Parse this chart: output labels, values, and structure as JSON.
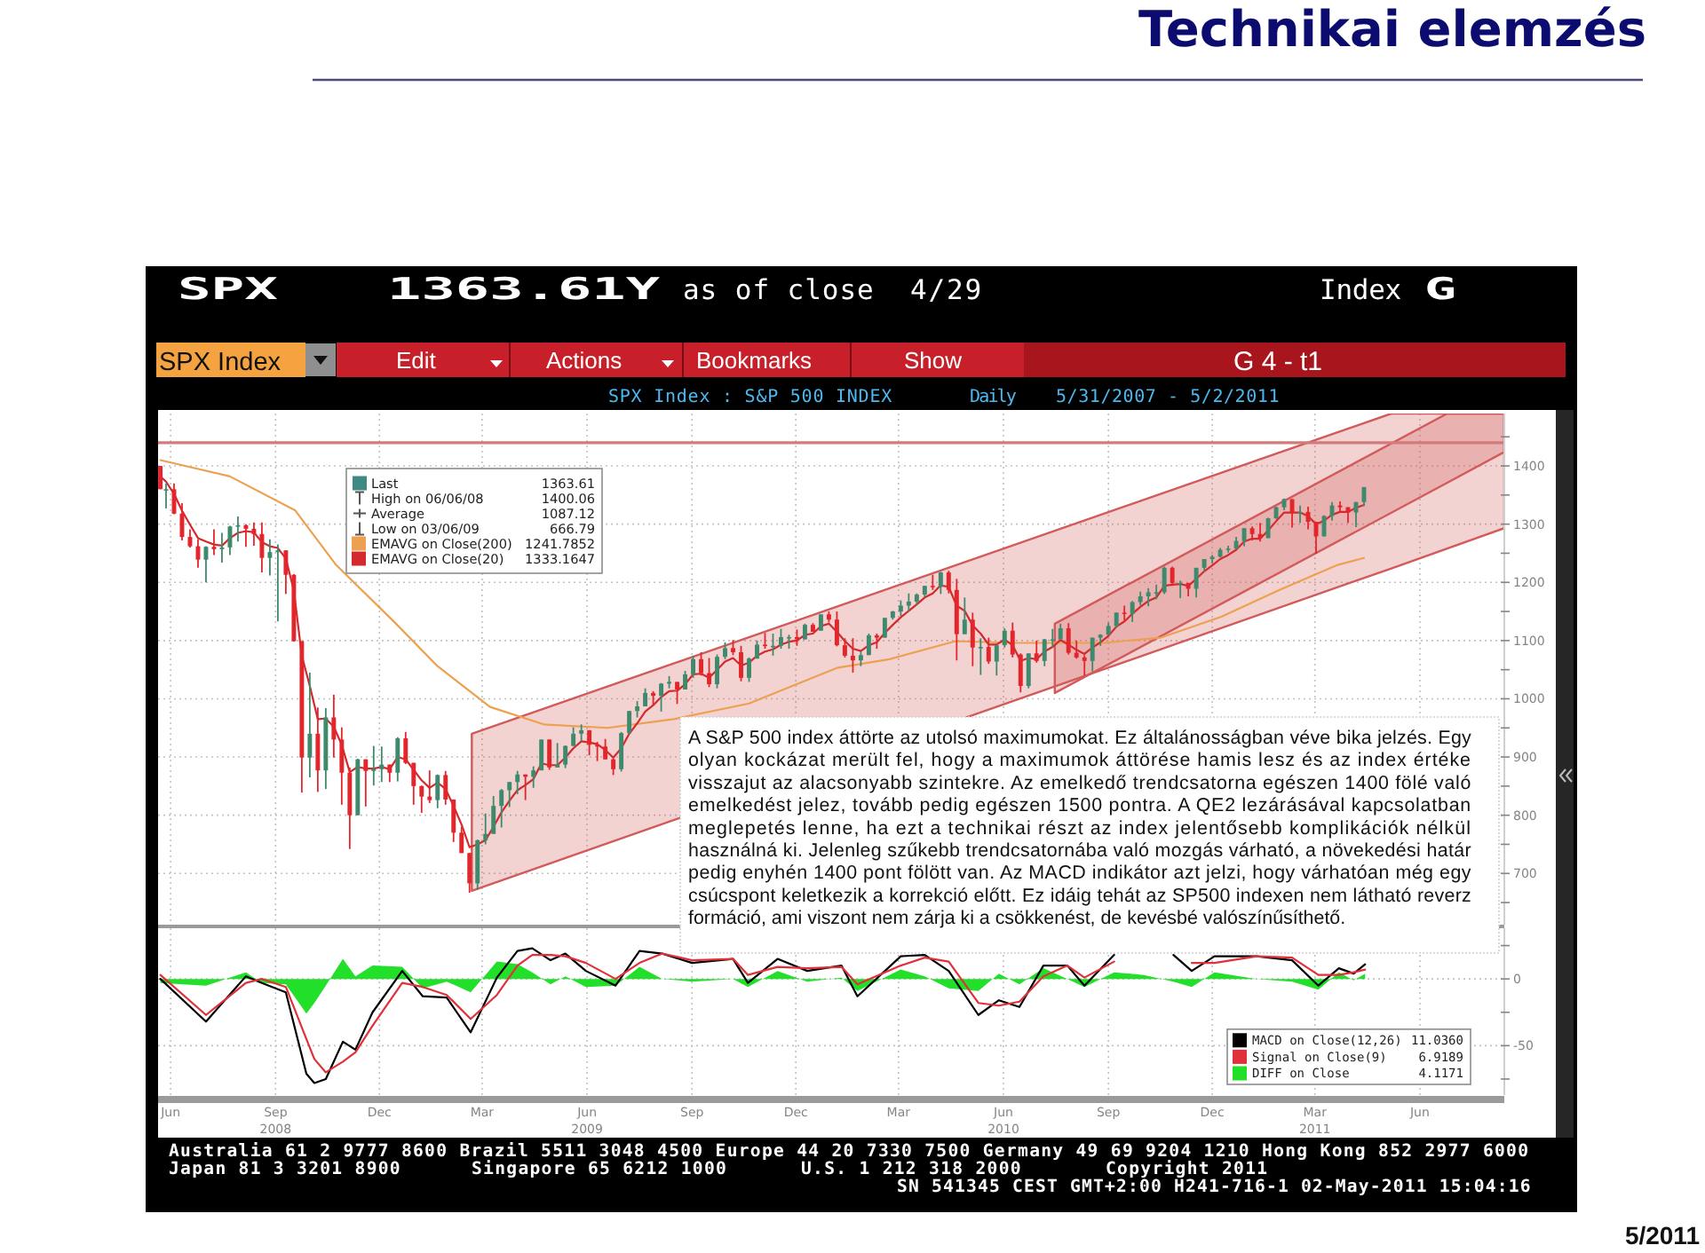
{
  "chart_data": [
    {
      "type": "candlestick",
      "x": [
        "2008-06-06",
        "2008-06-11",
        "2008-06-18",
        "2008-06-25",
        "2008-07-02",
        "2008-07-09",
        "2008-07-16",
        "2008-07-23",
        "2008-07-30",
        "2008-08-06",
        "2008-08-13",
        "2008-08-20",
        "2008-08-27",
        "2008-09-03",
        "2008-09-10",
        "2008-09-17",
        "2008-09-24",
        "2008-10-01",
        "2008-10-08",
        "2008-10-15",
        "2008-10-22",
        "2008-10-29",
        "2008-11-05",
        "2008-11-12",
        "2008-11-19",
        "2008-11-26",
        "2008-12-03",
        "2008-12-10",
        "2008-12-17",
        "2008-12-24",
        "2008-12-31",
        "2009-01-07",
        "2009-01-14",
        "2009-01-21",
        "2009-01-28",
        "2009-02-04",
        "2009-02-11",
        "2009-02-18",
        "2009-02-25",
        "2009-03-04",
        "2009-03-11",
        "2009-03-18",
        "2009-03-25",
        "2009-04-01",
        "2009-04-08",
        "2009-04-15",
        "2009-04-22",
        "2009-04-29",
        "2009-05-06",
        "2009-05-13",
        "2009-05-20",
        "2009-05-27",
        "2009-06-03",
        "2009-06-10",
        "2009-06-17",
        "2009-06-24",
        "2009-07-01",
        "2009-07-08",
        "2009-07-15",
        "2009-07-22",
        "2009-07-29",
        "2009-08-05",
        "2009-08-12",
        "2009-08-19",
        "2009-08-26",
        "2009-09-02",
        "2009-09-09",
        "2009-09-16",
        "2009-09-23",
        "2009-09-30",
        "2009-10-07",
        "2009-10-14",
        "2009-10-21",
        "2009-10-28",
        "2009-11-04",
        "2009-11-11",
        "2009-11-18",
        "2009-11-25",
        "2009-12-02",
        "2009-12-09",
        "2009-12-16",
        "2009-12-23",
        "2009-12-30",
        "2010-01-06",
        "2010-01-13",
        "2010-01-20",
        "2010-01-27",
        "2010-02-03",
        "2010-02-10",
        "2010-02-17",
        "2010-02-24",
        "2010-03-03",
        "2010-03-10",
        "2010-03-17",
        "2010-03-24",
        "2010-03-31",
        "2010-04-07",
        "2010-04-14",
        "2010-04-21",
        "2010-04-28",
        "2010-05-05",
        "2010-05-12",
        "2010-05-19",
        "2010-05-26",
        "2010-06-02",
        "2010-06-09",
        "2010-06-16",
        "2010-06-23",
        "2010-06-30",
        "2010-07-07",
        "2010-07-14",
        "2010-07-21",
        "2010-07-28",
        "2010-08-04",
        "2010-08-11",
        "2010-08-18",
        "2010-08-25",
        "2010-09-01",
        "2010-09-08",
        "2010-09-15",
        "2010-09-22",
        "2010-09-29",
        "2010-10-06",
        "2010-10-13",
        "2010-10-20",
        "2010-10-27",
        "2010-11-03",
        "2010-11-10",
        "2010-11-17",
        "2010-11-24",
        "2010-12-01",
        "2010-12-08",
        "2010-12-15",
        "2010-12-22",
        "2010-12-29",
        "2011-01-05",
        "2011-01-12",
        "2011-01-19",
        "2011-01-26",
        "2011-02-02",
        "2011-02-09",
        "2011-02-16",
        "2011-02-23",
        "2011-03-02",
        "2011-03-09",
        "2011-03-16",
        "2011-03-23",
        "2011-03-30",
        "2011-04-06",
        "2011-04-13",
        "2011-04-20",
        "2011-04-27"
      ],
      "ohlc": [
        [
          1400,
          1400.06,
          1360,
          1360
        ],
        [
          1360,
          1370,
          1327,
          1360
        ],
        [
          1360,
          1370,
          1317,
          1318
        ],
        [
          1318,
          1336,
          1272,
          1278
        ],
        [
          1278,
          1291,
          1260,
          1262
        ],
        [
          1262,
          1274,
          1225,
          1239
        ],
        [
          1239,
          1262,
          1200,
          1261
        ],
        [
          1261,
          1291,
          1247,
          1257
        ],
        [
          1257,
          1285,
          1234,
          1260
        ],
        [
          1260,
          1297,
          1247,
          1296
        ],
        [
          1296,
          1313,
          1270,
          1298
        ],
        [
          1298,
          1300,
          1261,
          1292
        ],
        [
          1292,
          1303,
          1263,
          1283
        ],
        [
          1283,
          1303,
          1217,
          1242
        ],
        [
          1242,
          1274,
          1212,
          1252
        ],
        [
          1252,
          1265,
          1133,
          1255
        ],
        [
          1255,
          1255,
          1180,
          1213
        ],
        [
          1213,
          1214,
          1098,
          1099
        ],
        [
          1099,
          1099,
          839,
          899
        ],
        [
          899,
          1045,
          865,
          940
        ],
        [
          940,
          985,
          840,
          877
        ],
        [
          877,
          984,
          845,
          968
        ],
        [
          968,
          1007,
          899,
          930
        ],
        [
          930,
          951,
          818,
          873
        ],
        [
          873,
          882,
          742,
          800
        ],
        [
          800,
          897,
          800,
          896
        ],
        [
          896,
          896,
          815,
          876
        ],
        [
          876,
          919,
          851,
          879
        ],
        [
          879,
          918,
          857,
          887
        ],
        [
          887,
          887,
          857,
          873
        ],
        [
          873,
          934,
          858,
          932
        ],
        [
          932,
          943,
          888,
          890
        ],
        [
          890,
          890,
          818,
          850
        ],
        [
          850,
          851,
          804,
          832
        ],
        [
          832,
          877,
          821,
          826
        ],
        [
          826,
          870,
          812,
          869
        ],
        [
          869,
          876,
          818,
          827
        ],
        [
          827,
          827,
          754,
          770
        ],
        [
          770,
          780,
          735,
          735
        ],
        [
          735,
          735,
          666.79,
          683
        ],
        [
          683,
          758,
          672,
          757
        ],
        [
          757,
          803,
          750,
          768
        ],
        [
          768,
          833,
          768,
          816
        ],
        [
          816,
          845,
          779,
          843
        ],
        [
          843,
          857,
          814,
          857
        ],
        [
          857,
          876,
          836,
          870
        ],
        [
          870,
          870,
          826,
          866
        ],
        [
          866,
          884,
          847,
          877
        ],
        [
          877,
          930,
          877,
          930
        ],
        [
          930,
          930,
          878,
          882
        ],
        [
          882,
          924,
          882,
          887
        ],
        [
          887,
          920,
          881,
          919
        ],
        [
          919,
          951,
          919,
          940
        ],
        [
          940,
          956,
          927,
          946
        ],
        [
          946,
          946,
          903,
          921
        ],
        [
          921,
          926,
          893,
          918
        ],
        [
          918,
          931,
          896,
          896
        ],
        [
          896,
          898,
          869,
          879
        ],
        [
          879,
          943,
          875,
          941
        ],
        [
          941,
          979,
          940,
          979
        ],
        [
          979,
          996,
          968,
          987
        ],
        [
          987,
          1018,
          987,
          1010
        ],
        [
          1010,
          1013,
          990,
          1005
        ],
        [
          1005,
          1027,
          978,
          1026
        ],
        [
          1026,
          1039,
          1018,
          1029
        ],
        [
          1029,
          1029,
          991,
          1016
        ],
        [
          1016,
          1048,
          1016,
          1042
        ],
        [
          1042,
          1074,
          1036,
          1068
        ],
        [
          1068,
          1080,
          1040,
          1044
        ],
        [
          1044,
          1070,
          1020,
          1025
        ],
        [
          1025,
          1076,
          1018,
          1072
        ],
        [
          1072,
          1097,
          1068,
          1087
        ],
        [
          1087,
          1101,
          1075,
          1080
        ],
        [
          1080,
          1091,
          1030,
          1036
        ],
        [
          1036,
          1071,
          1029,
          1069
        ],
        [
          1069,
          1100,
          1069,
          1093
        ],
        [
          1093,
          1113,
          1086,
          1091
        ],
        [
          1091,
          1112,
          1074,
          1091
        ],
        [
          1091,
          1120,
          1086,
          1106
        ],
        [
          1106,
          1110,
          1086,
          1106
        ],
        [
          1106,
          1119,
          1091,
          1102
        ],
        [
          1102,
          1129,
          1102,
          1127
        ],
        [
          1127,
          1130,
          1115,
          1115
        ],
        [
          1117,
          1145,
          1117,
          1145
        ],
        [
          1145,
          1150,
          1131,
          1136
        ],
        [
          1136,
          1150,
          1090,
          1092
        ],
        [
          1092,
          1104,
          1071,
          1074
        ],
        [
          1074,
          1104,
          1045,
          1066
        ],
        [
          1066,
          1081,
          1056,
          1075
        ],
        [
          1075,
          1112,
          1075,
          1109
        ],
        [
          1109,
          1112,
          1086,
          1105
        ],
        [
          1105,
          1139,
          1105,
          1139
        ],
        [
          1139,
          1151,
          1136,
          1150
        ],
        [
          1150,
          1169,
          1142,
          1160
        ],
        [
          1160,
          1181,
          1150,
          1167
        ],
        [
          1167,
          1181,
          1161,
          1179
        ],
        [
          1179,
          1194,
          1175,
          1194
        ],
        [
          1194,
          1213,
          1187,
          1192
        ],
        [
          1192,
          1218,
          1180,
          1217
        ],
        [
          1217,
          1220,
          1181,
          1187
        ],
        [
          1187,
          1206,
          1066,
          1111
        ],
        [
          1111,
          1174,
          1111,
          1136
        ],
        [
          1136,
          1148,
          1056,
          1088
        ],
        [
          1088,
          1104,
          1041,
          1089
        ],
        [
          1089,
          1105,
          1060,
          1064
        ],
        [
          1064,
          1092,
          1040,
          1092
        ],
        [
          1092,
          1121,
          1088,
          1117
        ],
        [
          1117,
          1131,
          1071,
          1076
        ],
        [
          1076,
          1078,
          1011,
          1022
        ],
        [
          1022,
          1078,
          1018,
          1078
        ],
        [
          1078,
          1100,
          1062,
          1065
        ],
        [
          1065,
          1103,
          1056,
          1102
        ],
        [
          1102,
          1120,
          1089,
          1102
        ],
        [
          1102,
          1129,
          1102,
          1121
        ],
        [
          1121,
          1130,
          1076,
          1079
        ],
        [
          1079,
          1100,
          1069,
          1071
        ],
        [
          1071,
          1075,
          1040,
          1065
        ],
        [
          1065,
          1105,
          1047,
          1105
        ],
        [
          1105,
          1111,
          1091,
          1110
        ],
        [
          1110,
          1131,
          1110,
          1125
        ],
        [
          1125,
          1148,
          1122,
          1148
        ],
        [
          1148,
          1160,
          1135,
          1146
        ],
        [
          1146,
          1168,
          1132,
          1166
        ],
        [
          1166,
          1184,
          1160,
          1176
        ],
        [
          1176,
          1190,
          1159,
          1183
        ],
        [
          1183,
          1196,
          1171,
          1183
        ],
        [
          1183,
          1227,
          1180,
          1225
        ],
        [
          1225,
          1227,
          1194,
          1199
        ],
        [
          1199,
          1203,
          1173,
          1199
        ],
        [
          1199,
          1199,
          1176,
          1189
        ],
        [
          1189,
          1225,
          1174,
          1225
        ],
        [
          1225,
          1240,
          1218,
          1240
        ],
        [
          1240,
          1247,
          1233,
          1244
        ],
        [
          1244,
          1259,
          1243,
          1256
        ],
        [
          1256,
          1263,
          1251,
          1258
        ],
        [
          1258,
          1278,
          1257,
          1271
        ],
        [
          1271,
          1293,
          1262,
          1293
        ],
        [
          1293,
          1296,
          1272,
          1283
        ],
        [
          1283,
          1302,
          1270,
          1276
        ],
        [
          1276,
          1311,
          1276,
          1310
        ],
        [
          1310,
          1330,
          1309,
          1329
        ],
        [
          1329,
          1344,
          1324,
          1343
        ],
        [
          1343,
          1343,
          1294,
          1320
        ],
        [
          1320,
          1332,
          1302,
          1321
        ],
        [
          1321,
          1330,
          1291,
          1304
        ],
        [
          1304,
          1304,
          1249,
          1279
        ],
        [
          1279,
          1315,
          1279,
          1314
        ],
        [
          1314,
          1338,
          1306,
          1332
        ],
        [
          1332,
          1339,
          1322,
          1329
        ],
        [
          1329,
          1329,
          1302,
          1320
        ],
        [
          1320,
          1338,
          1295,
          1338
        ],
        [
          1338,
          1364,
          1331,
          1363.61
        ]
      ],
      "series": [
        {
          "type": "line",
          "color": "#d25a5a",
          "x": [
            "2009-03-06",
            "2011-05-21",
            "2011-08-28"
          ],
          "values": [
            null,
            null,
            null
          ],
          "lower": [
            670,
            1224,
            1293
          ],
          "upper": [
            940,
            1490,
            1490
          ]
        },
        {
          "type": "line",
          "color": "#d25a5a",
          "x": [
            "2010-07-30",
            "2011-07-09",
            "2011-08-28"
          ],
          "values": [
            null,
            null,
            null
          ],
          "lower": [
            1010,
            1371,
            1424
          ],
          "upper": [
            1129,
            1490,
            1490
          ]
        },
        {
          "name": "EMAVG on Close(200) 1241.7852",
          "type": "line",
          "color": "#eda050",
          "x": [
            "2008-06-06",
            "2008-08-06",
            "2008-10-02",
            "2008-11-07",
            "2008-12-28",
            "2009-02-04",
            "2009-03-22",
            "2009-05-08",
            "2009-07-03",
            "2009-08-30",
            "2009-11-04",
            "2010-01-20",
            "2010-03-07",
            "2010-05-04",
            "2010-06-24",
            "2010-09-10",
            "2010-10-31",
            "2010-12-23",
            "2011-02-12",
            "2011-04-04",
            "2011-04-27"
          ],
          "values": [
            1410,
            1382,
            1324,
            1230,
            1132,
            1056,
            986,
            956,
            950,
            965,
            992,
            1053,
            1068,
            1099,
            1096,
            1096,
            1105,
            1141,
            1187,
            1230,
            1242
          ]
        },
        {
          "name": "EMAVG on Close(20) 1333.1647",
          "type": "line",
          "color": "#d42a2e",
          "values": [
            1382,
            1373,
            1352,
            1323,
            1299,
            1276,
            1270,
            1265,
            1263,
            1276,
            1285,
            1288,
            1286,
            1269,
            1262,
            1259,
            1241,
            1186,
            1074,
            1022,
            965,
            966,
            952,
            921,
            874,
            883,
            880,
            880,
            883,
            879,
            900,
            896,
            878,
            860,
            847,
            856,
            845,
            816,
            784,
            745,
            750,
            757,
            780,
            805,
            825,
            843,
            852,
            862,
            889,
            886,
            886,
            899,
            915,
            927,
            925,
            922,
            912,
            899,
            915,
            940,
            958,
            978,
            989,
            1003,
            1013,
            1014,
            1025,
            1042,
            1043,
            1036,
            1050,
            1064,
            1070,
            1057,
            1062,
            1074,
            1081,
            1085,
            1093,
            1098,
            1100,
            1110,
            1112,
            1125,
            1129,
            1115,
            1099,
            1086,
            1082,
            1092,
            1097,
            1113,
            1127,
            1140,
            1151,
            1162,
            1174,
            1181,
            1195,
            1192,
            1160,
            1151,
            1126,
            1112,
            1093,
            1093,
            1102,
            1092,
            1065,
            1070,
            1068,
            1081,
            1089,
            1101,
            1093,
            1084,
            1077,
            1088,
            1097,
            1108,
            1124,
            1133,
            1146,
            1158,
            1168,
            1174,
            1194,
            1196,
            1197,
            1194,
            1206,
            1219,
            1229,
            1240,
            1247,
            1256,
            1270,
            1275,
            1275,
            1289,
            1305,
            1320,
            1320,
            1320,
            1314,
            1300,
            1306,
            1316,
            1321,
            1321,
            1328,
            1333
          ]
        }
      ],
      "xlim": [
        "2008-06-04",
        "2011-08-28"
      ],
      "xticks": [
        {
          "value": "2008-06-15",
          "label": null
        },
        {
          "value": "2008-09-15",
          "label": null
        },
        {
          "value": "2008-12-15",
          "label": null
        },
        {
          "value": "2009-03-15",
          "label": null
        },
        {
          "value": "2009-06-15",
          "label": null
        },
        {
          "value": "2009-09-15",
          "label": null
        },
        {
          "value": "2009-12-15",
          "label": null
        },
        {
          "value": "2010-03-15",
          "label": null
        },
        {
          "value": "2010-06-15",
          "label": null
        },
        {
          "value": "2010-09-15",
          "label": null
        },
        {
          "value": "2010-12-15",
          "label": null
        },
        {
          "value": "2011-03-15",
          "label": null
        },
        {
          "value": "2011-06-15",
          "label": null
        }
      ],
      "ylim": [
        612,
        1490
      ],
      "yticks": [
        {
          "value": 1450,
          "label": null
        },
        1400,
        {
          "value": 1350,
          "label": null
        },
        1300,
        {
          "value": 1250,
          "label": null
        },
        1200,
        {
          "value": 1150,
          "label": null
        },
        1100,
        {
          "value": 1050,
          "label": null
        },
        1000,
        {
          "value": 950,
          "label": null
        },
        900,
        {
          "value": 850,
          "label": null
        },
        800,
        {
          "value": 750,
          "label": null
        },
        700,
        {
          "value": 650,
          "label": null
        }
      ],
      "ref_lines": [
        {
          "axis": "y",
          "value": 1440,
          "color": "#d47a7a"
        }
      ],
      "grid": true,
      "legend": "top left",
      "tick_labels": "y",
      "annotations": [
        "Last 1363.61",
        "High on 06/06/08 1400.06",
        "Average 1087.12",
        "Low on 03/06/09 666.79"
      ]
    },
    {
      "type": "line",
      "x": [
        "2008-06-06",
        "2008-07-16",
        "2008-08-20",
        "2008-09-03",
        "2008-09-24",
        "2008-10-12",
        "2008-10-19",
        "2008-10-29",
        "2008-11-13",
        "2008-11-24",
        "2008-12-09",
        "2009-01-04",
        "2009-01-22",
        "2009-02-12",
        "2009-03-05",
        "2009-03-28",
        "2009-04-15",
        "2009-04-28",
        "2009-05-14",
        "2009-05-27",
        "2009-06-14",
        "2009-07-10",
        "2009-07-31",
        "2009-08-20",
        "2009-09-15",
        "2009-10-21",
        "2009-11-03",
        "2009-11-29",
        "2009-12-25",
        "2010-01-24",
        "2010-02-07",
        "2010-03-17",
        "2010-04-07",
        "2010-04-28",
        "2010-05-24",
        "2010-06-11",
        "2010-06-29",
        "2010-07-20",
        "2010-08-10",
        "2010-08-25",
        "2010-09-20",
        "2010-10-16",
        "2010-11-11",
        "2010-11-27",
        "2010-12-17",
        "2011-01-23",
        "2011-02-23",
        "2011-03-18",
        "2011-04-05",
        "2011-04-18",
        "2011-04-28"
      ],
      "series": [
        {
          "name": "MACD on Close(12,26) 11.0360",
          "type": "line",
          "color": "#000000",
          "values": [
            0,
            -32,
            2,
            -3,
            -10,
            -71,
            -78,
            -75,
            -47,
            -53,
            -25,
            6,
            -13,
            -14,
            -40,
            1,
            21,
            23,
            14,
            19,
            6,
            -5,
            21,
            19,
            12,
            15,
            -3,
            15,
            6,
            10,
            -13,
            17,
            18,
            6,
            -27,
            -16,
            -21,
            10,
            10,
            -5,
            18,
            null,
            18,
            6,
            17,
            17,
            14,
            -5,
            8,
            4,
            11
          ]
        },
        {
          "name": "Signal on Close(9) 6.9189",
          "type": "line",
          "color": "#e0303a",
          "values": [
            3,
            -27,
            -3,
            0,
            -6,
            -45,
            -60,
            -70,
            -62,
            -55,
            -35,
            -3,
            -6,
            -12,
            -30,
            -12,
            10,
            18,
            18,
            17,
            12,
            0,
            12,
            19,
            14,
            15,
            3,
            9,
            8,
            9,
            -4,
            10,
            16,
            13,
            -18,
            -20,
            -17,
            2,
            10,
            1,
            13,
            null,
            null,
            12,
            12,
            17,
            16,
            3,
            3,
            5,
            7
          ]
        },
        {
          "name": "DIFF on Close 4.1171",
          "type": "area",
          "color": "#22e02a",
          "values": [
            -3,
            -5,
            5,
            -3,
            -4,
            -26,
            -18,
            -5,
            15,
            2,
            10,
            9,
            -7,
            -2,
            -10,
            13,
            11,
            5,
            -4,
            2,
            -6,
            -5,
            9,
            0,
            -2,
            0,
            -6,
            6,
            -2,
            1,
            -9,
            7,
            2,
            -7,
            -9,
            4,
            -4,
            8,
            0,
            -6,
            5,
            3,
            -2,
            -6,
            5,
            0,
            -2,
            -8,
            5,
            -1,
            4
          ]
        }
      ],
      "xlim": [
        "2008-06-04",
        "2011-08-28"
      ],
      "xticks": [
        {
          "value": "2008-06-15",
          "label": "Jun"
        },
        {
          "value": "2008-09-15",
          "label": "Sep\n2008"
        },
        {
          "value": "2008-12-15",
          "label": "Dec"
        },
        {
          "value": "2009-03-15",
          "label": "Mar"
        },
        {
          "value": "2009-06-15",
          "label": "Jun\n2009"
        },
        {
          "value": "2009-09-15",
          "label": "Sep"
        },
        {
          "value": "2009-12-15",
          "label": "Dec"
        },
        {
          "value": "2010-03-15",
          "label": "Mar"
        },
        {
          "value": "2010-06-15",
          "label": "Jun\n2010"
        },
        {
          "value": "2010-09-15",
          "label": "Sep"
        },
        {
          "value": "2010-12-15",
          "label": "Dec"
        },
        {
          "value": "2011-03-15",
          "label": "Mar\n2011"
        },
        {
          "value": "2011-06-15",
          "label": "Jun"
        }
      ],
      "ylim": [
        -87,
        38
      ],
      "yticks": [
        {
          "value": 25,
          "label": null
        },
        0,
        {
          "value": -25,
          "label": null
        },
        -50,
        {
          "value": -75,
          "label": null
        }
      ],
      "grid": true,
      "legend": "bottom right"
    },
    {
      "type": "other",
      "title": "Technikai elemzés",
      "annotations": [
        "SPX",
        "1363.61Y",
        "as of close",
        "4/29",
        "Index",
        "G",
        "SPX Index",
        "Edit",
        "Actions",
        "Bookmarks",
        "Show",
        "G 4 - t1",
        "SPX Index : S&P 500 INDEX",
        "Daily",
        "5/31/2007 - 5/2/2011",
        "A S&P 500 index áttörte az utolsó maximumokat. Ez általánosságban véve bika jelzés. Egy olyan kockázat merült fel, hogy a maximumok áttörése hamis lesz és az index értéke visszajut az alacsonyabb szintekre. Az emelkedő trendcsatorna egészen 1400 fölé való emelkedést jelez, tovább pedig egészen 1500 pontra. A QE2 lezárásával kapcsolatban meglepetés lenne, ha ezt a technikai részt az index jelentősebb komplikációk nélkül használná ki. Jelenleg szűkebb trendcsatornába való mozgás várható, a növekedési határ pedig enyhén 1400 pont fölött van. Az MACD indikátor azt jelzi, hogy várhatóan még egy csúcspont keletkezik a korrekció előtt. Ez idáig tehát az SP500 indexen nem látható reverz formáció, ami viszont nem zárja ki a csökkenést, de kevésbé valószínűsíthető.",
        "Australia 61 2 9777 8600 Brazil 5511 3048 4500 Europe 44 20 7330 7500 Germany 49 69 9204 1210 Hong Kong 852 2977 6000",
        "Japan 81 3 3201 8900",
        "Singapore 65 6212 1000",
        "U.S. 1 212 318 2000",
        "Copyright 2011",
        "SN 541345 CEST GMT+2:00 H241-716-1 02-May-2011 15:04:16",
        "5/2011"
      ]
    }
  ]
}
